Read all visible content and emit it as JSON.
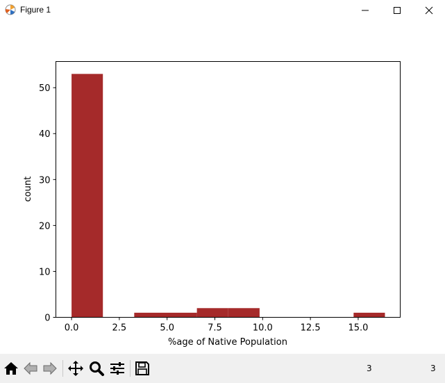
{
  "window": {
    "title": "Figure 1"
  },
  "toolbar": {
    "status_left": "3",
    "status_right": "3",
    "icons": [
      "home-icon",
      "back-icon",
      "forward-icon",
      "pan-icon",
      "zoom-icon",
      "configure-subplots-icon",
      "save-icon"
    ]
  },
  "colors": {
    "bar": "#a52a2a"
  },
  "chart_data": {
    "type": "bar",
    "title": "",
    "xlabel": "%age of Native Population",
    "ylabel": "count",
    "xlim": [
      -0.82,
      17.2
    ],
    "ylim": [
      0,
      55.7
    ],
    "xticks": [
      0.0,
      2.5,
      5.0,
      7.5,
      10.0,
      12.5,
      15.0
    ],
    "xtick_labels": [
      "0.0",
      "2.5",
      "5.0",
      "7.5",
      "10.0",
      "12.5",
      "15.0"
    ],
    "yticks": [
      0,
      10,
      20,
      30,
      40,
      50
    ],
    "ytick_labels": [
      "0",
      "10",
      "20",
      "30",
      "40",
      "50"
    ],
    "bins": [
      {
        "x0": 0.0,
        "x1": 1.64,
        "count": 53
      },
      {
        "x0": 1.64,
        "x1": 3.28,
        "count": 0
      },
      {
        "x0": 3.28,
        "x1": 4.92,
        "count": 1
      },
      {
        "x0": 4.92,
        "x1": 6.56,
        "count": 1
      },
      {
        "x0": 6.56,
        "x1": 8.2,
        "count": 2
      },
      {
        "x0": 8.2,
        "x1": 9.84,
        "count": 2
      },
      {
        "x0": 9.84,
        "x1": 11.48,
        "count": 0
      },
      {
        "x0": 11.48,
        "x1": 13.12,
        "count": 0
      },
      {
        "x0": 13.12,
        "x1": 14.76,
        "count": 0
      },
      {
        "x0": 14.76,
        "x1": 16.4,
        "count": 1
      }
    ],
    "grid": false
  }
}
